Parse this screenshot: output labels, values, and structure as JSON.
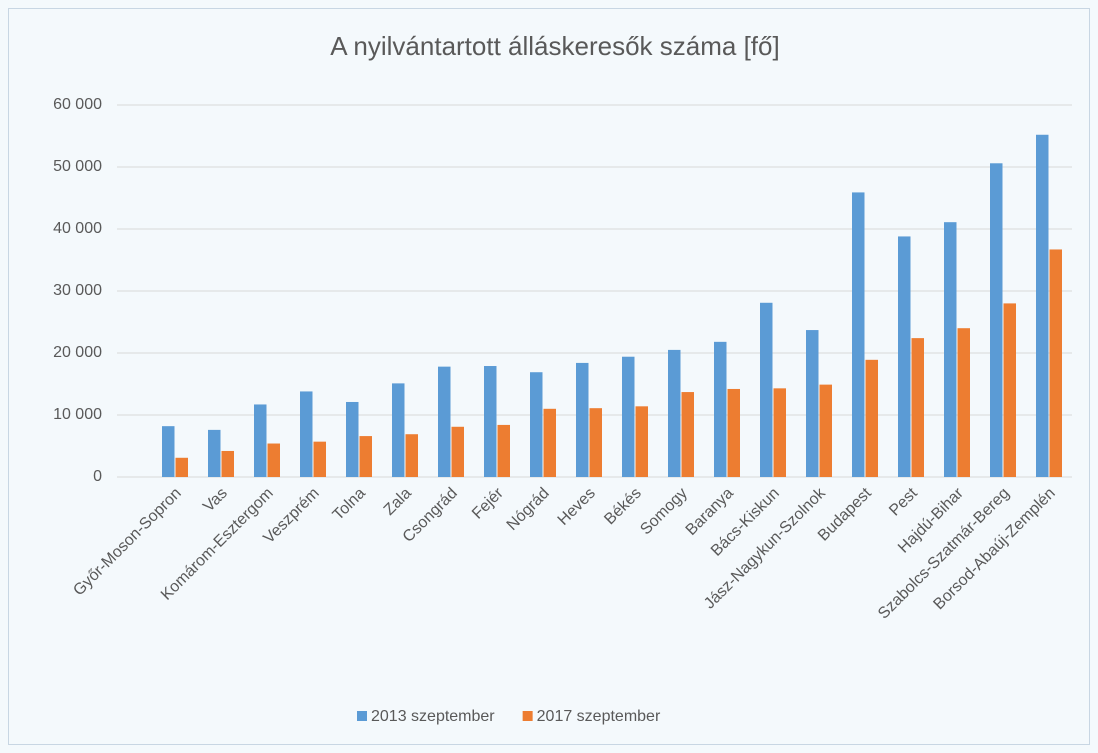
{
  "chart_data": {
    "type": "bar",
    "title": "A nyilvántartott álláskeresők száma [fő]",
    "categories": [
      "Győr-Moson-Sopron",
      "Vas",
      "Komárom-Esztergom",
      "Veszprém",
      "Tolna",
      "Zala",
      "Csongrád",
      "Fejér",
      "Nógrád",
      "Heves",
      "Békés",
      "Somogy",
      "Baranya",
      "Bács-Kiskun",
      "Jász-Nagykun-Szolnok",
      "Budapest",
      "Pest",
      "Hajdú-Bihar",
      "Szabolcs-Szatmár-Bereg",
      "Borsod-Abaúj-Zemplén"
    ],
    "series": [
      {
        "name": "2013 szeptember",
        "color": "#5b9bd5",
        "values": [
          8200,
          7600,
          11700,
          13800,
          12100,
          15100,
          17800,
          17900,
          16900,
          18400,
          19400,
          20500,
          21800,
          28100,
          23700,
          45900,
          38800,
          41100,
          50600,
          55200
        ]
      },
      {
        "name": "2017 szeptember",
        "color": "#ed7d31",
        "values": [
          3100,
          4200,
          5400,
          5700,
          6600,
          6900,
          8100,
          8400,
          11000,
          11100,
          11400,
          13700,
          14200,
          14300,
          14900,
          18900,
          22400,
          24000,
          28000,
          36700
        ]
      }
    ],
    "ylim": [
      0,
      60000
    ],
    "yticks": [
      0,
      {
        "value": 10000,
        "label": "10 000"
      },
      {
        "value": 20000,
        "label": "20 000"
      },
      {
        "value": 30000,
        "label": "30 000"
      },
      {
        "value": 40000,
        "label": "40 000"
      },
      {
        "value": 50000,
        "label": "50 000"
      },
      {
        "value": 60000,
        "label": "60 000"
      }
    ],
    "grid": true,
    "legend": "bottom"
  }
}
